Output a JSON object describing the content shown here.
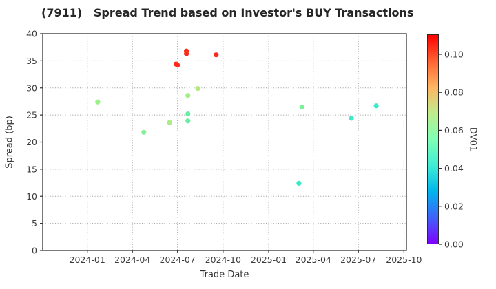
{
  "title": "(7911)   Spread Trend based on Investor's BUY Transactions",
  "chart_data": {
    "type": "scatter",
    "title": "(7911)   Spread Trend based on Investor's BUY Transactions",
    "xlabel": "Trade Date",
    "ylabel": "Spread (bp)",
    "grid": true,
    "ylim": [
      0,
      40
    ],
    "y_ticks": [
      0,
      5,
      10,
      15,
      20,
      25,
      30,
      35,
      40
    ],
    "x_domain_days": [
      -90,
      644
    ],
    "x_ticks": [
      {
        "label": "2024-01",
        "days": 0
      },
      {
        "label": "2024-04",
        "days": 91
      },
      {
        "label": "2024-07",
        "days": 182
      },
      {
        "label": "2024-10",
        "days": 274
      },
      {
        "label": "2025-01",
        "days": 366
      },
      {
        "label": "2025-04",
        "days": 456
      },
      {
        "label": "2025-07",
        "days": 547
      },
      {
        "label": "2025-10",
        "days": 639
      }
    ],
    "points": [
      {
        "date": "2024-01-22",
        "days": 21,
        "spread_bp": 27.4,
        "dv01": 0.061,
        "color": "#9BF08B"
      },
      {
        "date": "2024-04-24",
        "days": 114,
        "spread_bp": 21.8,
        "dv01": 0.057,
        "color": "#85F19B"
      },
      {
        "date": "2024-06-15",
        "days": 166,
        "spread_bp": 23.6,
        "dv01": 0.065,
        "color": "#AEEA85"
      },
      {
        "date": "2024-06-28",
        "days": 179,
        "spread_bp": 34.4,
        "dv01": 0.105,
        "color": "#FA2B1C"
      },
      {
        "date": "2024-07-01",
        "days": 182,
        "spread_bp": 34.2,
        "dv01": 0.105,
        "color": "#FA2B1C"
      },
      {
        "date": "2024-07-19",
        "days": 200,
        "spread_bp": 36.8,
        "dv01": 0.106,
        "color": "#FA2B1C"
      },
      {
        "date": "2024-07-19",
        "days": 200,
        "spread_bp": 36.3,
        "dv01": 0.106,
        "color": "#FA2B1C"
      },
      {
        "date": "2024-07-22",
        "days": 203,
        "spread_bp": 28.6,
        "dv01": 0.063,
        "color": "#A2EE89"
      },
      {
        "date": "2024-07-22",
        "days": 203,
        "spread_bp": 25.2,
        "dv01": 0.05,
        "color": "#68EDA4"
      },
      {
        "date": "2024-07-22",
        "days": 203,
        "spread_bp": 23.9,
        "dv01": 0.05,
        "color": "#68EDA4"
      },
      {
        "date": "2024-08-11",
        "days": 223,
        "spread_bp": 29.9,
        "dv01": 0.067,
        "color": "#B5E87E"
      },
      {
        "date": "2024-09-17",
        "days": 260,
        "spread_bp": 36.1,
        "dv01": 0.105,
        "color": "#FA2B1C"
      },
      {
        "date": "2025-03-03",
        "days": 427,
        "spread_bp": 12.4,
        "dv01": 0.041,
        "color": "#3BE8C8"
      },
      {
        "date": "2025-03-09",
        "days": 433,
        "spread_bp": 26.5,
        "dv01": 0.055,
        "color": "#7DF199"
      },
      {
        "date": "2025-06-17",
        "days": 533,
        "spread_bp": 24.4,
        "dv01": 0.042,
        "color": "#40E9CC"
      },
      {
        "date": "2025-08-06",
        "days": 583,
        "spread_bp": 26.7,
        "dv01": 0.041,
        "color": "#3DE8CE"
      }
    ],
    "colorbar": {
      "label": "DV01",
      "vmin": 0.0,
      "vmax": 0.1105,
      "ticks": [
        {
          "label": "0.00",
          "value": 0.0
        },
        {
          "label": "0.02",
          "value": 0.02
        },
        {
          "label": "0.04",
          "value": 0.04
        },
        {
          "label": "0.06",
          "value": 0.06
        },
        {
          "label": "0.08",
          "value": 0.08
        },
        {
          "label": "0.10",
          "value": 0.1
        }
      ],
      "gradient_stops": [
        {
          "t": 0.0,
          "color": "#8000FF"
        },
        {
          "t": 0.125,
          "color": "#3F62FA"
        },
        {
          "t": 0.25,
          "color": "#00B5EC"
        },
        {
          "t": 0.375,
          "color": "#40ECD4"
        },
        {
          "t": 0.5,
          "color": "#80FFB4"
        },
        {
          "t": 0.625,
          "color": "#BFEC8E"
        },
        {
          "t": 0.75,
          "color": "#FFB562"
        },
        {
          "t": 0.875,
          "color": "#FF6232"
        },
        {
          "t": 1.0,
          "color": "#FF0000"
        }
      ]
    },
    "style": {
      "grid_color": "#999999",
      "spine_color": "#333333",
      "background": "#ffffff",
      "point_radius": 3.6
    }
  }
}
